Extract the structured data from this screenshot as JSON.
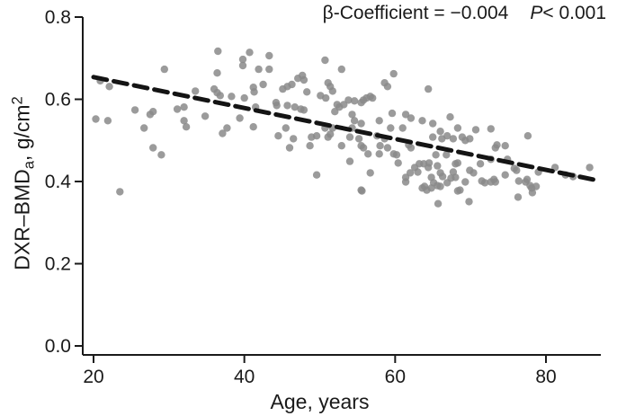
{
  "figure": {
    "annotation": {
      "beta": "β-Coefficient = −0.004",
      "p_var": "P",
      "p_rest": "< 0.001"
    },
    "x_axis": {
      "title": "Age, years",
      "tick_labels": [
        "20",
        "40",
        "60",
        "80"
      ]
    },
    "y_axis": {
      "title_main": "DXR–BMD",
      "title_sub": "a",
      "title_unit": ", g/cm",
      "title_sup": "2",
      "tick_labels": [
        "0.0",
        "0.2",
        "0.4",
        "0.6",
        "0.8"
      ]
    },
    "colors": {
      "axis": "#1a1a1a",
      "text": "#1a1a1a",
      "point": "#8a8a8a",
      "trend": "#141414",
      "background": "#ffffff"
    }
  },
  "chart_data": {
    "type": "scatter",
    "title": "",
    "xlabel": "Age, years",
    "ylabel": "DXR-BMDa, g/cm2",
    "annotation": "β-Coefficient = −0.004   P< 0.001",
    "xlim": [
      17.5,
      87.5
    ],
    "ylim": [
      0.0,
      0.8
    ],
    "x_ticks": [
      20,
      40,
      60,
      80
    ],
    "y_ticks": [
      0.0,
      0.2,
      0.4,
      0.6,
      0.8
    ],
    "grid": false,
    "legend": false,
    "trend_line": {
      "style": "dashed",
      "x": [
        20,
        86.5
      ],
      "y": [
        0.654,
        0.404
      ],
      "beta": -0.004,
      "p": "<0.001"
    },
    "points": [
      [
        20.3,
        0.552
      ],
      [
        20.9,
        0.645
      ],
      [
        21.9,
        0.548
      ],
      [
        22.1,
        0.631
      ],
      [
        23.5,
        0.375
      ],
      [
        25.5,
        0.574
      ],
      [
        26.7,
        0.53
      ],
      [
        27.5,
        0.563
      ],
      [
        27.9,
        0.57
      ],
      [
        27.9,
        0.482
      ],
      [
        29.0,
        0.465
      ],
      [
        29.4,
        0.673
      ],
      [
        31.1,
        0.576
      ],
      [
        32.0,
        0.581
      ],
      [
        32.0,
        0.548
      ],
      [
        32.3,
        0.533
      ],
      [
        33.5,
        0.62
      ],
      [
        34.8,
        0.559
      ],
      [
        36.0,
        0.625
      ],
      [
        36.4,
        0.616
      ],
      [
        36.5,
        0.717
      ],
      [
        36.4,
        0.664
      ],
      [
        36.8,
        0.609
      ],
      [
        37.1,
        0.517
      ],
      [
        37.7,
        0.53
      ],
      [
        38.3,
        0.607
      ],
      [
        39.4,
        0.554
      ],
      [
        39.8,
        0.697
      ],
      [
        39.8,
        0.682
      ],
      [
        40.0,
        0.603
      ],
      [
        40.7,
        0.714
      ],
      [
        41.2,
        0.629
      ],
      [
        41.2,
        0.533
      ],
      [
        41.3,
        0.618
      ],
      [
        41.5,
        0.581
      ],
      [
        41.9,
        0.673
      ],
      [
        42.5,
        0.636
      ],
      [
        43.3,
        0.706
      ],
      [
        43.3,
        0.673
      ],
      [
        44.2,
        0.592
      ],
      [
        44.3,
        0.585
      ],
      [
        44.5,
        0.511
      ],
      [
        45.1,
        0.625
      ],
      [
        45.5,
        0.53
      ],
      [
        45.7,
        0.631
      ],
      [
        45.7,
        0.585
      ],
      [
        46.0,
        0.482
      ],
      [
        46.3,
        0.636
      ],
      [
        46.5,
        0.504
      ],
      [
        46.7,
        0.581
      ],
      [
        47.1,
        0.651
      ],
      [
        47.5,
        0.576
      ],
      [
        47.7,
        0.658
      ],
      [
        47.9,
        0.647
      ],
      [
        47.9,
        0.574
      ],
      [
        48.3,
        0.618
      ],
      [
        48.7,
        0.487
      ],
      [
        48.9,
        0.508
      ],
      [
        49.6,
        0.511
      ],
      [
        49.6,
        0.416
      ],
      [
        50.1,
        0.609
      ],
      [
        50.7,
        0.695
      ],
      [
        50.7,
        0.53
      ],
      [
        50.8,
        0.603
      ],
      [
        51.1,
        0.64
      ],
      [
        51.1,
        0.508
      ],
      [
        51.4,
        0.631
      ],
      [
        51.4,
        0.515
      ],
      [
        51.7,
        0.62
      ],
      [
        51.7,
        0.53
      ],
      [
        52.0,
        0.57
      ],
      [
        52.3,
        0.587
      ],
      [
        52.6,
        0.581
      ],
      [
        52.9,
        0.673
      ],
      [
        52.9,
        0.487
      ],
      [
        53.2,
        0.587
      ],
      [
        53.8,
        0.598
      ],
      [
        54.0,
        0.508
      ],
      [
        54.0,
        0.449
      ],
      [
        54.3,
        0.563
      ],
      [
        54.3,
        0.53
      ],
      [
        54.6,
        0.596
      ],
      [
        54.6,
        0.548
      ],
      [
        55.2,
        0.504
      ],
      [
        55.5,
        0.592
      ],
      [
        55.5,
        0.541
      ],
      [
        55.5,
        0.487
      ],
      [
        55.5,
        0.379
      ],
      [
        55.6,
        0.377
      ],
      [
        55.8,
        0.598
      ],
      [
        55.8,
        0.482
      ],
      [
        56.2,
        0.603
      ],
      [
        56.4,
        0.467
      ],
      [
        56.7,
        0.607
      ],
      [
        56.7,
        0.421
      ],
      [
        57.0,
        0.603
      ],
      [
        57.6,
        0.511
      ],
      [
        57.9,
        0.548
      ],
      [
        57.9,
        0.467
      ],
      [
        58.0,
        0.487
      ],
      [
        58.6,
        0.64
      ],
      [
        58.6,
        0.504
      ],
      [
        59.0,
        0.631
      ],
      [
        59.0,
        0.482
      ],
      [
        59.4,
        0.53
      ],
      [
        59.6,
        0.566
      ],
      [
        59.8,
        0.662
      ],
      [
        59.8,
        0.467
      ],
      [
        60.2,
        0.465
      ],
      [
        60.4,
        0.445
      ],
      [
        61.0,
        0.53
      ],
      [
        61.4,
        0.563
      ],
      [
        61.4,
        0.41
      ],
      [
        61.4,
        0.399
      ],
      [
        61.8,
        0.489
      ],
      [
        62.0,
        0.421
      ],
      [
        62.1,
        0.554
      ],
      [
        62.1,
        0.482
      ],
      [
        62.6,
        0.434
      ],
      [
        63.0,
        0.423
      ],
      [
        63.2,
        0.443
      ],
      [
        63.6,
        0.548
      ],
      [
        63.6,
        0.384
      ],
      [
        63.8,
        0.443
      ],
      [
        63.9,
        0.388
      ],
      [
        64.2,
        0.379
      ],
      [
        64.4,
        0.625
      ],
      [
        64.4,
        0.434
      ],
      [
        64.5,
        0.445
      ],
      [
        64.8,
        0.41
      ],
      [
        64.8,
        0.384
      ],
      [
        65.0,
        0.541
      ],
      [
        65.0,
        0.508
      ],
      [
        65.1,
        0.397
      ],
      [
        65.4,
        0.465
      ],
      [
        65.6,
        0.438
      ],
      [
        65.6,
        0.39
      ],
      [
        65.7,
        0.346
      ],
      [
        66.0,
        0.522
      ],
      [
        66.0,
        0.421
      ],
      [
        66.0,
        0.388
      ],
      [
        66.2,
        0.504
      ],
      [
        66.3,
        0.412
      ],
      [
        66.8,
        0.465
      ],
      [
        66.9,
        0.511
      ],
      [
        66.9,
        0.397
      ],
      [
        67.3,
        0.557
      ],
      [
        67.4,
        0.408
      ],
      [
        67.7,
        0.504
      ],
      [
        67.7,
        0.423
      ],
      [
        68.0,
        0.443
      ],
      [
        68.0,
        0.41
      ],
      [
        68.3,
        0.53
      ],
      [
        68.3,
        0.445
      ],
      [
        68.3,
        0.377
      ],
      [
        68.6,
        0.379
      ],
      [
        68.9,
        0.508
      ],
      [
        69.3,
        0.5
      ],
      [
        69.3,
        0.399
      ],
      [
        69.8,
        0.351
      ],
      [
        69.9,
        0.504
      ],
      [
        69.9,
        0.427
      ],
      [
        70.4,
        0.421
      ],
      [
        70.7,
        0.526
      ],
      [
        71.3,
        0.443
      ],
      [
        71.5,
        0.401
      ],
      [
        71.9,
        0.397
      ],
      [
        72.7,
        0.528
      ],
      [
        72.7,
        0.454
      ],
      [
        72.7,
        0.399
      ],
      [
        73.1,
        0.405
      ],
      [
        73.3,
        0.482
      ],
      [
        73.3,
        0.399
      ],
      [
        73.5,
        0.489
      ],
      [
        74.6,
        0.487
      ],
      [
        74.6,
        0.416
      ],
      [
        74.9,
        0.454
      ],
      [
        75.8,
        0.432
      ],
      [
        76.1,
        0.427
      ],
      [
        76.3,
        0.362
      ],
      [
        76.4,
        0.401
      ],
      [
        77.3,
        0.399
      ],
      [
        77.5,
        0.405
      ],
      [
        77.6,
        0.511
      ],
      [
        77.9,
        0.39
      ],
      [
        78.1,
        0.384
      ],
      [
        78.2,
        0.373
      ],
      [
        78.7,
        0.388
      ],
      [
        79.0,
        0.423
      ],
      [
        81.2,
        0.434
      ],
      [
        82.6,
        0.416
      ],
      [
        83.6,
        0.412
      ],
      [
        85.8,
        0.434
      ]
    ]
  }
}
